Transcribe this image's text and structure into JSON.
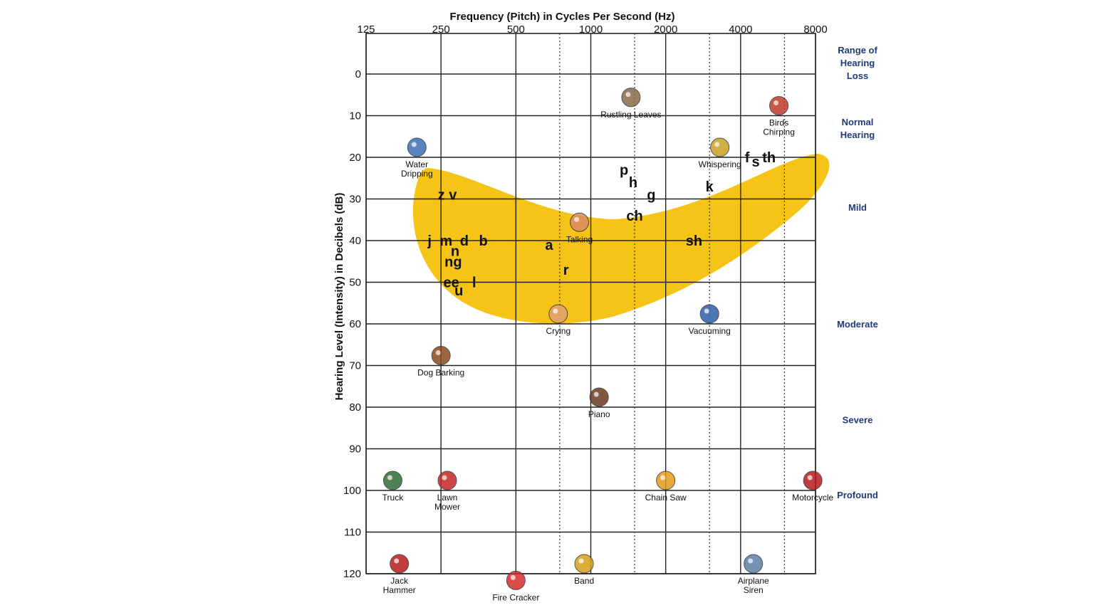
{
  "chart_data": {
    "type": "scatter",
    "x_title": "Frequency (Pitch) in Cycles Per Second (Hz)",
    "y_title": "Hearing Level (Intensity) in Decibels (dB)",
    "x_scale": "log2",
    "x_ticks": [
      "125",
      "250",
      "500",
      "1000",
      "2000",
      "4000",
      "8000"
    ],
    "x_ticks_values": [
      125,
      250,
      500,
      1000,
      2000,
      4000,
      8000
    ],
    "x_dotted_gridlines_hz": [
      750,
      1500,
      3000,
      6000
    ],
    "y_ticks": [
      "0",
      "10",
      "20",
      "30",
      "40",
      "50",
      "60",
      "70",
      "80",
      "90",
      "100",
      "110",
      "120"
    ],
    "y_ticks_values": [
      0,
      10,
      20,
      30,
      40,
      50,
      60,
      70,
      80,
      90,
      100,
      110,
      120
    ],
    "y_reversed": true,
    "ylim": [
      -10,
      120
    ],
    "xlim": [
      125,
      8000
    ],
    "grid": true,
    "speech_banana_color": "#f5c417",
    "hearing_loss_header": [
      "Range of",
      "Hearing",
      "Loss"
    ],
    "hearing_loss_categories": [
      {
        "label": [
          "Normal",
          "Hearing"
        ],
        "db": 13
      },
      {
        "label": [
          "Mild"
        ],
        "db": 32
      },
      {
        "label": [
          "Moderate"
        ],
        "db": 60
      },
      {
        "label": [
          "Severe"
        ],
        "db": 83
      },
      {
        "label": [
          "Profound"
        ],
        "db": 101
      }
    ],
    "phonemes": [
      {
        "text": "z v",
        "hz": 265,
        "db": 29
      },
      {
        "text": "j",
        "hz": 225,
        "db": 40
      },
      {
        "text": "m",
        "hz": 262,
        "db": 40
      },
      {
        "text": "d",
        "hz": 310,
        "db": 40
      },
      {
        "text": "b",
        "hz": 370,
        "db": 40
      },
      {
        "text": "n",
        "hz": 285,
        "db": 42.5
      },
      {
        "text": "ng",
        "hz": 280,
        "db": 45
      },
      {
        "text": "ee",
        "hz": 275,
        "db": 50
      },
      {
        "text": "l",
        "hz": 340,
        "db": 50
      },
      {
        "text": "u",
        "hz": 295,
        "db": 52
      },
      {
        "text": "a",
        "hz": 680,
        "db": 41
      },
      {
        "text": "r",
        "hz": 795,
        "db": 47
      },
      {
        "text": "p",
        "hz": 1360,
        "db": 23
      },
      {
        "text": "h",
        "hz": 1480,
        "db": 26
      },
      {
        "text": "g",
        "hz": 1750,
        "db": 29
      },
      {
        "text": "ch",
        "hz": 1500,
        "db": 34
      },
      {
        "text": "sh",
        "hz": 2600,
        "db": 40
      },
      {
        "text": "k",
        "hz": 3000,
        "db": 27
      },
      {
        "text": "f",
        "hz": 4250,
        "db": 20
      },
      {
        "text": "s",
        "hz": 4600,
        "db": 21
      },
      {
        "text": "th",
        "hz": 5200,
        "db": 20
      }
    ],
    "sounds": [
      {
        "label": [
          "Rustling Leaves"
        ],
        "hz": 1450,
        "db": 8,
        "color": "#8a6a4a"
      },
      {
        "label": [
          "Birds",
          "Chirping"
        ],
        "hz": 5700,
        "db": 10,
        "color": "#c0392b"
      },
      {
        "label": [
          "Water",
          "Dripping"
        ],
        "hz": 200,
        "db": 20,
        "color": "#3b6fb6"
      },
      {
        "label": [
          "Whispering"
        ],
        "hz": 3300,
        "db": 20,
        "color": "#c9a227"
      },
      {
        "label": [
          "Talking"
        ],
        "hz": 900,
        "db": 38,
        "color": "#d98b5f"
      },
      {
        "label": [
          "Crying"
        ],
        "hz": 740,
        "db": 60,
        "color": "#e0a070"
      },
      {
        "label": [
          "Vacuuming"
        ],
        "hz": 3000,
        "db": 60,
        "color": "#2e5fa8"
      },
      {
        "label": [
          "Dog Barking"
        ],
        "hz": 250,
        "db": 70,
        "color": "#8b4a1e"
      },
      {
        "label": [
          "Piano"
        ],
        "hz": 1080,
        "db": 80,
        "color": "#6b3a1e"
      },
      {
        "label": [
          "Truck"
        ],
        "hz": 160,
        "db": 100,
        "color": "#2f6e3a"
      },
      {
        "label": [
          "Lawn",
          "Mower"
        ],
        "hz": 265,
        "db": 100,
        "color": "#c62828"
      },
      {
        "label": [
          "Chain Saw"
        ],
        "hz": 2000,
        "db": 100,
        "color": "#e39b1b"
      },
      {
        "label": [
          "Motorcycle"
        ],
        "hz": 7800,
        "db": 100,
        "color": "#b71c1c"
      },
      {
        "label": [
          "Jack",
          "Hammer"
        ],
        "hz": 170,
        "db": 120,
        "color": "#b71c1c"
      },
      {
        "label": [
          "Fire Cracker"
        ],
        "hz": 500,
        "db": 124,
        "color": "#d32f2f"
      },
      {
        "label": [
          "Band"
        ],
        "hz": 940,
        "db": 120,
        "color": "#d4a017"
      },
      {
        "label": [
          "Airplane",
          "Siren"
        ],
        "hz": 4500,
        "db": 120,
        "color": "#5b7fa8"
      }
    ]
  }
}
